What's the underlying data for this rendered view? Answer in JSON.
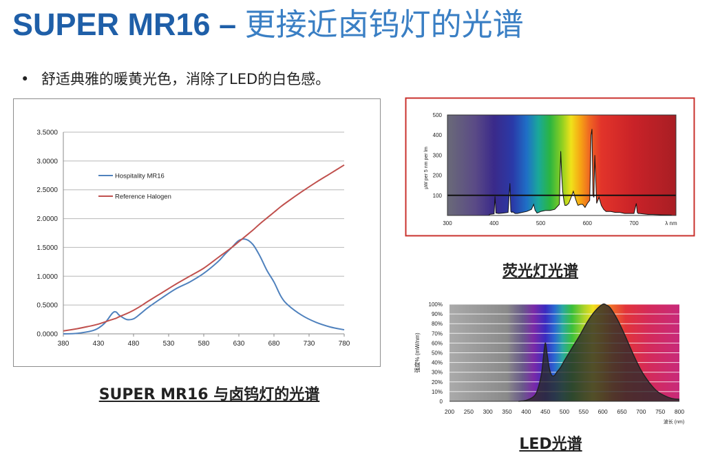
{
  "slide": {
    "title_latin": "SUPER MR16 –",
    "title_cjk": "更接近卤钨灯的光谱",
    "bullet_marker": "•",
    "bullet_text": "舒适典雅的暖黄光色，消除了LED的白色感。"
  },
  "captions": {
    "main_chart": "SUPER MR16 与卤钨灯的光谱",
    "fluorescent": "荧光灯光谱",
    "led": "LED光谱"
  },
  "chart_data": [
    {
      "type": "line",
      "x": [
        380,
        400,
        420,
        430,
        440,
        450,
        455,
        460,
        470,
        480,
        490,
        500,
        520,
        540,
        560,
        580,
        600,
        610,
        620,
        630,
        640,
        650,
        660,
        670,
        680,
        690,
        700,
        720,
        740,
        760,
        780
      ],
      "xticks": [
        380,
        430,
        480,
        530,
        580,
        630,
        680,
        730,
        780
      ],
      "yticks": [
        "0.0000",
        "0.5000",
        "1.0000",
        "1.5000",
        "2.0000",
        "2.5000",
        "3.0000",
        "3.5000"
      ],
      "xlim": [
        380,
        780
      ],
      "ylim": [
        0,
        3.5
      ],
      "grid": true,
      "legend_position": "top-left",
      "series": [
        {
          "name": "Hospitality MR16",
          "color": "#4f81bd",
          "values": [
            0.0,
            0.01,
            0.05,
            0.1,
            0.2,
            0.36,
            0.38,
            0.32,
            0.25,
            0.26,
            0.35,
            0.45,
            0.62,
            0.78,
            0.9,
            1.05,
            1.25,
            1.38,
            1.5,
            1.62,
            1.64,
            1.55,
            1.35,
            1.1,
            0.9,
            0.65,
            0.5,
            0.32,
            0.2,
            0.12,
            0.07
          ]
        },
        {
          "name": "Reference Halogen",
          "color": "#c0504d",
          "values": [
            0.05,
            0.09,
            0.14,
            0.17,
            0.21,
            0.25,
            0.27,
            0.3,
            0.35,
            0.41,
            0.48,
            0.56,
            0.71,
            0.86,
            1.0,
            1.14,
            1.32,
            1.41,
            1.5,
            1.6,
            1.7,
            1.8,
            1.91,
            2.01,
            2.11,
            2.21,
            2.3,
            2.47,
            2.63,
            2.78,
            2.93
          ]
        }
      ]
    },
    {
      "type": "line",
      "xticks": [
        "300",
        "400",
        "500",
        "600",
        "700"
      ],
      "xunit": "λ nm",
      "yticks": [
        "100",
        "200",
        "300",
        "400",
        "500"
      ],
      "ylabel": "μW per 5 nm per lm",
      "xlim": [
        300,
        790
      ],
      "ylim": [
        0,
        500
      ],
      "reference_line": 100,
      "series": [
        {
          "color": "#111111",
          "x": [
            390,
            400,
            402,
            404,
            410,
            420,
            430,
            434,
            436,
            438,
            440,
            445,
            450,
            460,
            470,
            480,
            485,
            488,
            490,
            492,
            496,
            500,
            510,
            520,
            530,
            540,
            543,
            545,
            547,
            550,
            552,
            555,
            560,
            565,
            570,
            575,
            578,
            580,
            585,
            590,
            595,
            600,
            605,
            608,
            610,
            612,
            614,
            616,
            620,
            625,
            630,
            635,
            640,
            650,
            660,
            670,
            680,
            690,
            700,
            705,
            707,
            709,
            712,
            720,
            730,
            740,
            760,
            780
          ],
          "values": [
            5,
            8,
            95,
            12,
            10,
            12,
            15,
            160,
            20,
            15,
            18,
            10,
            10,
            15,
            20,
            30,
            55,
            25,
            20,
            12,
            15,
            20,
            25,
            25,
            30,
            55,
            320,
            200,
            120,
            70,
            50,
            50,
            60,
            90,
            120,
            80,
            60,
            50,
            55,
            55,
            40,
            60,
            75,
            400,
            430,
            100,
            90,
            300,
            60,
            90,
            50,
            30,
            20,
            20,
            15,
            15,
            10,
            10,
            10,
            60,
            15,
            10,
            10,
            8,
            5,
            5,
            3,
            2
          ]
        }
      ]
    },
    {
      "type": "area",
      "xticks": [
        "200",
        "250",
        "300",
        "350",
        "400",
        "450",
        "500",
        "550",
        "600",
        "650",
        "700",
        "750",
        "800"
      ],
      "xlabel": "波长 (nm)",
      "yticks": [
        "0",
        "10%",
        "20%",
        "30%",
        "40%",
        "50%",
        "60%",
        "70%",
        "80%",
        "90%",
        "100%"
      ],
      "ylabel": "强度% (mW/nm)",
      "xlim": [
        200,
        800
      ],
      "ylim": [
        0,
        100
      ],
      "series": [
        {
          "color": "#222222",
          "x": [
            380,
            400,
            420,
            430,
            440,
            445,
            450,
            455,
            460,
            465,
            470,
            475,
            480,
            490,
            500,
            520,
            540,
            560,
            580,
            600,
            610,
            620,
            640,
            660,
            680,
            700,
            720,
            740,
            760,
            780,
            800
          ],
          "values": [
            0,
            1,
            5,
            12,
            28,
            45,
            60,
            48,
            35,
            28,
            26,
            27,
            30,
            35,
            42,
            55,
            68,
            82,
            93,
            100,
            99,
            96,
            83,
            66,
            48,
            32,
            20,
            11,
            6,
            3,
            2
          ]
        }
      ]
    }
  ]
}
